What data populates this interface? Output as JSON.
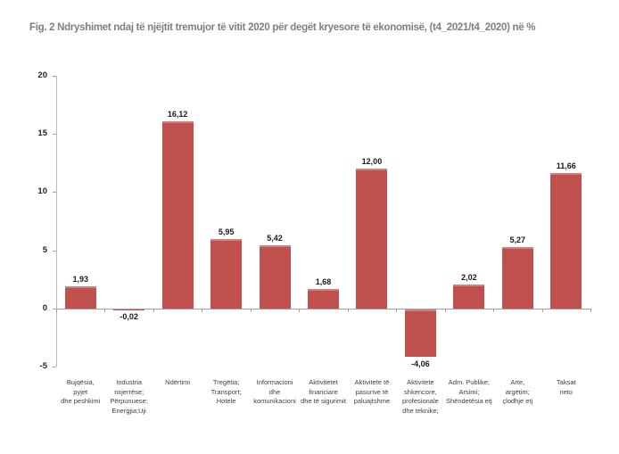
{
  "chart_data": {
    "type": "bar",
    "title": "Fig. 2 Ndryshimet ndaj të njëjtit tremujor të vitit 2020 për degët kryesore të ekonomisë, (t4_2021/t4_2020) në %",
    "xlabel": "",
    "ylabel": "",
    "ylim": [
      -5,
      20
    ],
    "yticks": [
      20,
      15,
      10,
      5,
      0,
      -5
    ],
    "ytick_labels": [
      "20",
      "15",
      "10",
      "5",
      "0",
      "-5"
    ],
    "grid": false,
    "legend": "none",
    "bar_color": "#c0504d",
    "categories": [
      "Bujqësia,\npyjet\ndhe peshkimi",
      "Industria\nnxjerrëse;\nPërpunuese;\nEnergjia;Uji",
      "Ndërtimi",
      "Tregëtia;\nTransport;\nHotele",
      "Informacioni\ndhe\nkomunikacioni",
      "Aktivitetet\nfinanciare\ndhe të sigurimit",
      "Aktivitete të\npasurive të\npaluajtshme",
      "Aktivitete\nshkencore,\nprofesionale\ndhe teknike;",
      "Adm. Publike;\nArsimi;\nShëndetësia etj",
      "Arte,\nargëtim;\nçlodhje etj",
      "Taksat\nneto"
    ],
    "values": [
      1.93,
      -0.02,
      16.12,
      5.95,
      5.42,
      1.68,
      12.0,
      -4.06,
      2.02,
      5.27,
      11.66
    ],
    "value_labels": [
      "1,93",
      "-0,02",
      "16,12",
      "5,95",
      "5,42",
      "1,68",
      "12,00",
      "-4,06",
      "2,02",
      "5,27",
      "11,66"
    ]
  }
}
